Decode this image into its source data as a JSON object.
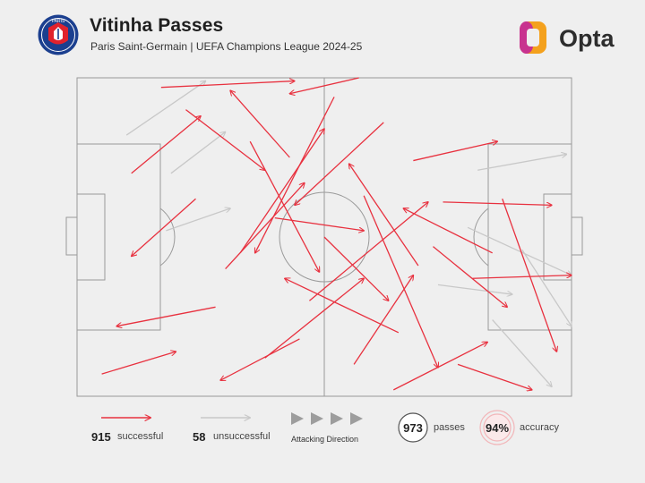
{
  "header": {
    "title": "Vitinha Passes",
    "subtitle": "Paris Saint-Germain | UEFA Champions League 2024-25",
    "club_crest_text": "PARIS",
    "brand": "Opta"
  },
  "colors": {
    "successful": "#e8313f",
    "unsuccessful": "#c8c8c8",
    "background": "#efefef",
    "pitch_lines": "#9a9a9a"
  },
  "legend": {
    "successful_count": "915",
    "successful_label": "successful",
    "unsuccessful_count": "58",
    "unsuccessful_label": "unsuccessful",
    "direction_label": "Attacking Direction",
    "total_passes": "973",
    "total_label": "passes",
    "accuracy": "94%",
    "accuracy_label": "accuracy"
  },
  "chart_data": {
    "type": "pass-map",
    "title": "Vitinha Passes",
    "subtitle": "Paris Saint-Germain | UEFA Champions League 2024-25",
    "pitch": {
      "length": 100,
      "width": 100,
      "attacking_direction": "left-to-right"
    },
    "totals": {
      "passes": 973,
      "successful": 915,
      "unsuccessful": 58,
      "accuracy_pct": 94
    },
    "series": [
      {
        "name": "successful",
        "count": 915,
        "sample_passes": [
          {
            "start": [
              17,
              3
            ],
            "end": [
              44,
              1
            ]
          },
          {
            "start": [
              57,
              0
            ],
            "end": [
              43,
              5
            ]
          },
          {
            "start": [
              24,
              38
            ],
            "end": [
              11,
              56
            ]
          },
          {
            "start": [
              33,
              55
            ],
            "end": [
              50,
              16
            ]
          },
          {
            "start": [
              65,
              80
            ],
            "end": [
              42,
              63
            ]
          },
          {
            "start": [
              47,
              70
            ],
            "end": [
              71,
              39
            ]
          },
          {
            "start": [
              5,
              93
            ],
            "end": [
              20,
              86
            ]
          },
          {
            "start": [
              68,
              26
            ],
            "end": [
              85,
              20
            ]
          },
          {
            "start": [
              74,
              39
            ],
            "end": [
              96,
              40
            ]
          },
          {
            "start": [
              50,
              50
            ],
            "end": [
              63,
              70
            ]
          },
          {
            "start": [
              38,
              88
            ],
            "end": [
              58,
              63
            ]
          },
          {
            "start": [
              80,
              63
            ],
            "end": [
              100,
              62
            ]
          },
          {
            "start": [
              62,
              14
            ],
            "end": [
              44,
              40
            ]
          },
          {
            "start": [
              28,
              72
            ],
            "end": [
              8,
              78
            ]
          },
          {
            "start": [
              56,
              90
            ],
            "end": [
              68,
              62
            ]
          },
          {
            "start": [
              43,
              25
            ],
            "end": [
              31,
              4
            ]
          },
          {
            "start": [
              72,
              53
            ],
            "end": [
              87,
              72
            ]
          },
          {
            "start": [
              35,
              20
            ],
            "end": [
              49,
              61
            ]
          },
          {
            "start": [
              86,
              38
            ],
            "end": [
              97,
              86
            ]
          },
          {
            "start": [
              22,
              10
            ],
            "end": [
              38,
              29
            ]
          },
          {
            "start": [
              64,
              98
            ],
            "end": [
              83,
              83
            ]
          },
          {
            "start": [
              52,
              6
            ],
            "end": [
              36,
              55
            ]
          },
          {
            "start": [
              45,
              82
            ],
            "end": [
              29,
              95
            ]
          },
          {
            "start": [
              69,
              59
            ],
            "end": [
              55,
              27
            ]
          },
          {
            "start": [
              11,
              30
            ],
            "end": [
              25,
              12
            ]
          },
          {
            "start": [
              40,
              44
            ],
            "end": [
              58,
              48
            ]
          },
          {
            "start": [
              77,
              90
            ],
            "end": [
              92,
              98
            ]
          },
          {
            "start": [
              58,
              37
            ],
            "end": [
              73,
              91
            ]
          },
          {
            "start": [
              30,
              60
            ],
            "end": [
              46,
              33
            ]
          },
          {
            "start": [
              84,
              55
            ],
            "end": [
              66,
              41
            ]
          }
        ]
      },
      {
        "name": "unsuccessful",
        "count": 58,
        "sample_passes": [
          {
            "start": [
              10,
              18
            ],
            "end": [
              26,
              1
            ]
          },
          {
            "start": [
              79,
              47
            ],
            "end": [
              100,
              62
            ]
          },
          {
            "start": [
              81,
              29
            ],
            "end": [
              99,
              24
            ]
          },
          {
            "start": [
              84,
              76
            ],
            "end": [
              96,
              97
            ]
          },
          {
            "start": [
              19,
              30
            ],
            "end": [
              30,
              17
            ]
          },
          {
            "start": [
              90,
              54
            ],
            "end": [
              100,
              78
            ]
          },
          {
            "start": [
              73,
              65
            ],
            "end": [
              88,
              68
            ]
          },
          {
            "start": [
              18,
              48
            ],
            "end": [
              31,
              41
            ]
          }
        ]
      }
    ]
  }
}
